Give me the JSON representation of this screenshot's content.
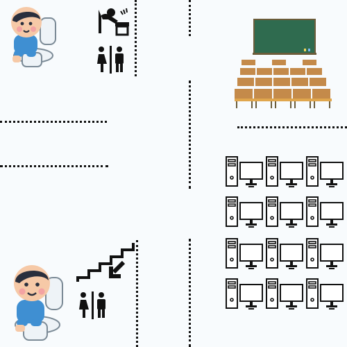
{
  "canvas": {
    "background": "#f8fbfd"
  },
  "colors": {
    "line": "#111111",
    "skin": "#f6c9a7",
    "hair": "#2a2f3d",
    "shirt": "#3f8fd2",
    "toilet": "#eef3f7",
    "board": "#2f6b4f",
    "desk": "#c48a4a",
    "chair": "#e0a64d",
    "pc_stroke": "#111111",
    "pc_fill": "#ffffff"
  },
  "icons": {
    "top_left_toilet_kid": "kid-on-toilet-illustration",
    "sink": "drinking-fountain-icon",
    "restroom_top": "restroom-man-woman-icon",
    "stairs": "stairs-down-icon",
    "restroom_bottom": "restroom-man-woman-icon",
    "bottom_left_toilet_kid": "kid-on-toilet-illustration",
    "classroom": "classroom-illustration",
    "computer": "desktop-computer-icon"
  },
  "computer_grid": {
    "rows": 4,
    "cols": 3
  }
}
